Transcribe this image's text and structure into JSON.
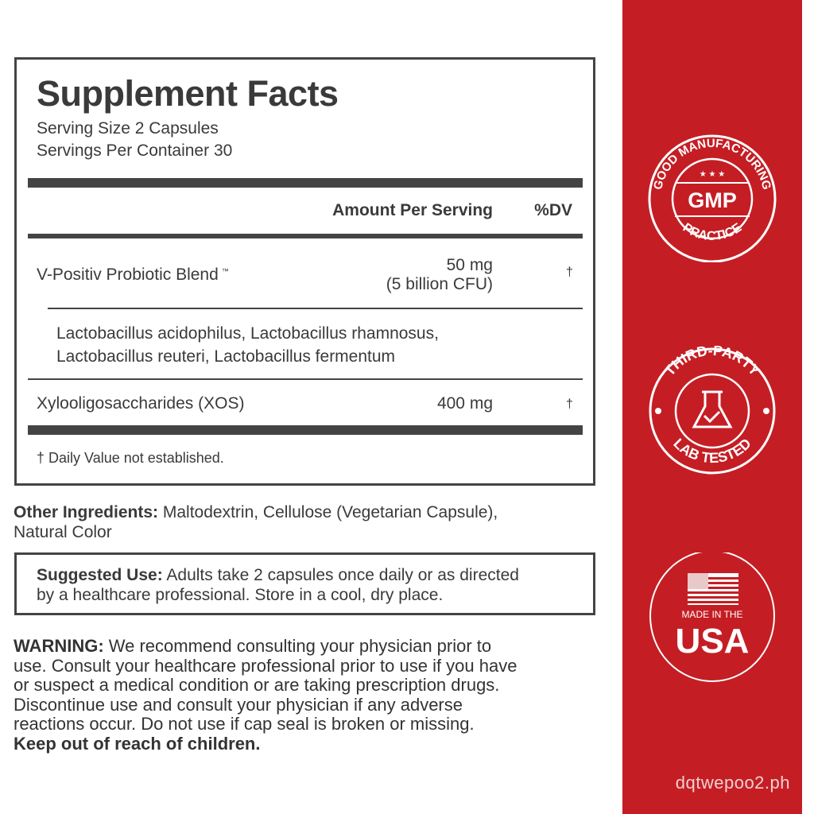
{
  "facts": {
    "title": "Supplement Facts",
    "serving_size": "Serving Size 2 Capsules",
    "servings_per_container": "Servings Per Container 30",
    "col_amount": "Amount Per Serving",
    "col_dv": "%DV",
    "rows": [
      {
        "name": "V-Positiv Probiotic Blend",
        "tm": "™",
        "amount": "50 mg",
        "amount2": "(5 billion CFU)",
        "dv": "†"
      },
      {
        "name": "Xylooligosaccharides (XOS)",
        "amount": "400 mg",
        "dv": "†"
      }
    ],
    "blend_line1": "Lactobacillus acidophilus, Lactobacillus rhamnosus,",
    "blend_line2": "Lactobacillus reuteri, Lactobacillus fermentum",
    "footnote": "† Daily Value not established."
  },
  "other": {
    "label": "Other Ingredients:",
    "line1": " Maltodextrin, Cellulose (Vegetarian Capsule),",
    "line2": "Natural Color"
  },
  "use": {
    "label": "Suggested Use:",
    "line1": " Adults take 2 capsules once daily or as directed",
    "line2": "by a healthcare professional. Store in a cool, dry place."
  },
  "warning": {
    "label": "WARNING:",
    "lines": [
      " We recommend consulting your physician prior to",
      "use. Consult your healthcare professional prior to use if you have",
      "or suspect a medical condition or are taking prescription drugs.",
      "Discontinue use and consult your physician if any adverse",
      "reactions occur. Do not use if cap seal is broken or missing."
    ],
    "bold_last": "Keep out of reach of children."
  },
  "badges": {
    "gmp": {
      "top": "GOOD MANUFACTURING",
      "center": "GMP",
      "bottom": "PRACTICE"
    },
    "lab": {
      "top": "THIRD-PARTY",
      "bottom": "LAB TESTED",
      "icon": "flask-check-icon"
    },
    "usa": {
      "small": "MADE IN THE",
      "big": "USA",
      "icon": "us-flag-icon"
    }
  },
  "colors": {
    "red": "#c41e24",
    "text": "#3a3a3a"
  },
  "watermark": "dqtwepoo2.ph"
}
